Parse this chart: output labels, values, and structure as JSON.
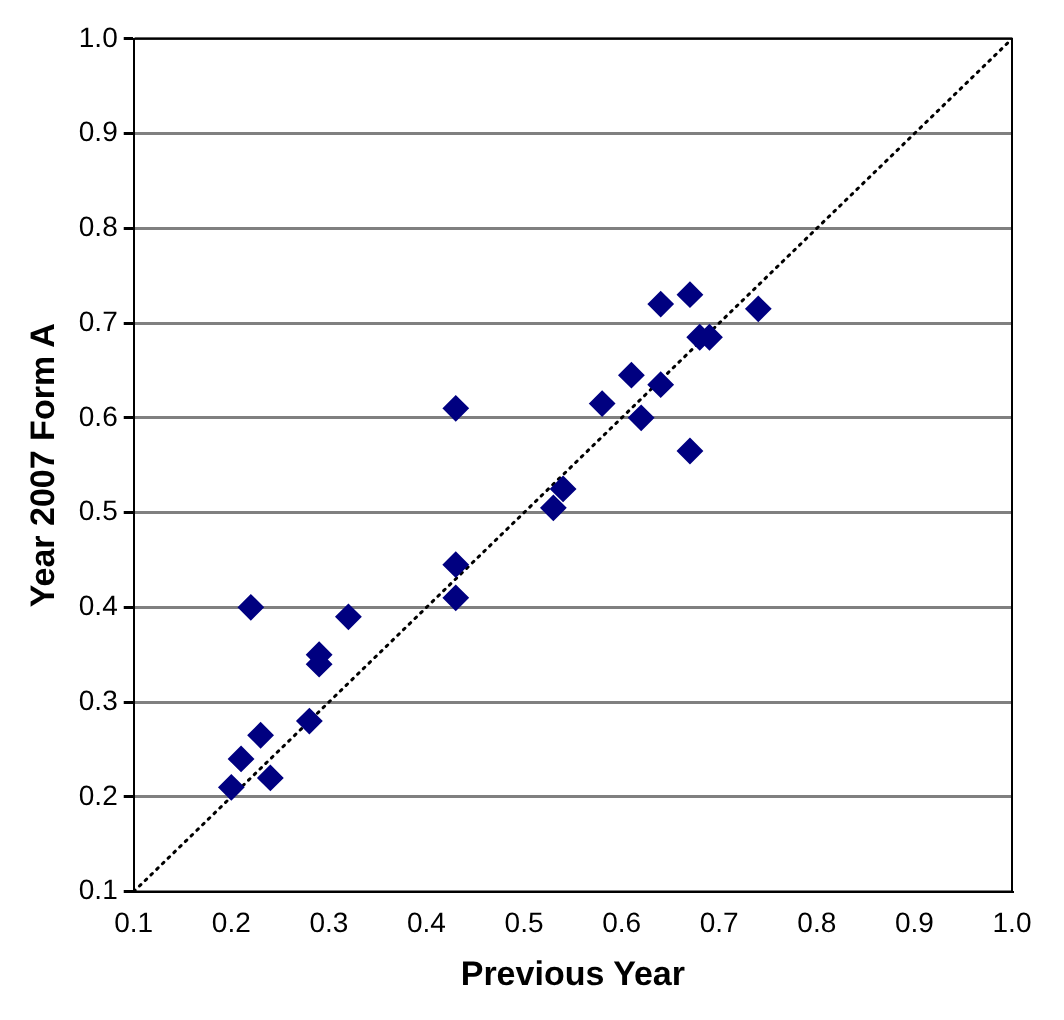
{
  "chart_data": {
    "type": "scatter",
    "xlabel": "Previous Year",
    "ylabel": "Year 2007 Form A",
    "xlim": [
      0.1,
      1
    ],
    "ylim": [
      0.1,
      1
    ],
    "xticks": [
      0.1,
      0.2,
      0.3,
      0.4,
      0.5,
      0.6,
      0.7,
      0.8,
      0.9,
      {
        "value": 1,
        "label": "1.0"
      }
    ],
    "yticks": [
      0.1,
      0.2,
      0.3,
      0.4,
      0.5,
      0.6,
      0.7,
      0.8,
      0.9,
      {
        "value": 1,
        "label": "1.0"
      }
    ],
    "grid": "y",
    "legend": false,
    "marker": "diamond",
    "series": [
      {
        "type": "scatter",
        "color": "#000080",
        "x": [
          0.2,
          0.21,
          0.23,
          0.24,
          0.22,
          0.28,
          0.29,
          0.29,
          0.32,
          0.43,
          0.43,
          0.43,
          0.53,
          0.54,
          0.58,
          0.61,
          0.62,
          0.64,
          0.64,
          0.67,
          0.67,
          0.68,
          0.69,
          0.74
        ],
        "values": [
          0.21,
          0.24,
          0.265,
          0.22,
          0.4,
          0.28,
          0.35,
          0.34,
          0.39,
          0.61,
          0.445,
          0.41,
          0.505,
          0.525,
          0.615,
          0.645,
          0.6,
          0.72,
          0.635,
          0.73,
          0.565,
          0.685,
          0.685,
          0.715
        ]
      },
      {
        "type": "line",
        "color": "#000000",
        "line_style": "dotted",
        "marker": "none",
        "x": [
          0.1,
          1
        ],
        "values": [
          0.1,
          1
        ]
      }
    ]
  }
}
